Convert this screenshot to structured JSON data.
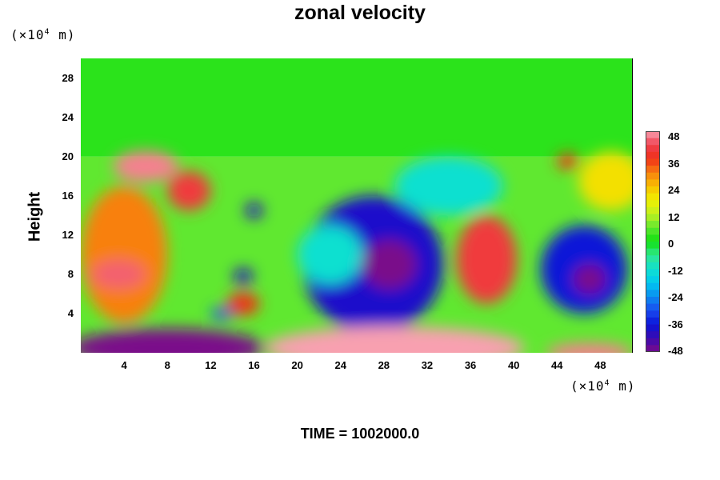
{
  "chart_data": {
    "type": "heatmap",
    "title": "zonal velocity",
    "ylabel": "Height",
    "xunit": {
      "prefix": "(×10",
      "exp": "4",
      "suffix": " m)"
    },
    "yunit": {
      "prefix": "(×10",
      "exp": "4",
      "suffix": " m)"
    },
    "footer": "TIME = 1002000.0",
    "xlim": [
      0,
      51
    ],
    "ylim": [
      0,
      30
    ],
    "xticks": [
      4,
      8,
      12,
      16,
      20,
      24,
      28,
      32,
      36,
      40,
      44,
      48
    ],
    "yticks": [
      4,
      8,
      12,
      16,
      20,
      24,
      28
    ],
    "colorbar": {
      "range": [
        -48,
        48
      ],
      "ticks": [
        48,
        36,
        24,
        12,
        0,
        -12,
        -24,
        -36,
        -48
      ]
    },
    "background_value": 0,
    "layers": [
      {
        "region": "below 20",
        "value": 6
      },
      {
        "region": "above 20",
        "value": 2
      }
    ],
    "features": [
      {
        "x": 4,
        "y": 10,
        "rx": 4,
        "ry": 7,
        "value": 30
      },
      {
        "x": 6,
        "y": 19,
        "rx": 3,
        "ry": 1.6,
        "value": 46
      },
      {
        "x": 10,
        "y": 16.5,
        "rx": 2,
        "ry": 2,
        "value": 40
      },
      {
        "x": 3.5,
        "y": 8,
        "rx": 2.5,
        "ry": 1.5,
        "value": 44
      },
      {
        "x": 27,
        "y": 9,
        "rx": 6.5,
        "ry": 7,
        "value": -38
      },
      {
        "x": 28.5,
        "y": 9,
        "rx": 2.5,
        "ry": 2.5,
        "value": -48
      },
      {
        "x": 37.5,
        "y": 9.5,
        "rx": 2.8,
        "ry": 4.5,
        "value": 40
      },
      {
        "x": 46.5,
        "y": 8.5,
        "rx": 4,
        "ry": 4.5,
        "value": -36
      },
      {
        "x": 47,
        "y": 7.5,
        "rx": 1.5,
        "ry": 1.5,
        "value": -48
      },
      {
        "x": 8,
        "y": 0.5,
        "rx": 9,
        "ry": 2,
        "value": -48
      },
      {
        "x": 29,
        "y": 0.5,
        "rx": 12,
        "ry": 2.2,
        "value": 48
      },
      {
        "x": 47,
        "y": 0,
        "rx": 4,
        "ry": 1,
        "value": 46
      },
      {
        "x": 23,
        "y": 10,
        "rx": 3,
        "ry": 3,
        "value": -12
      },
      {
        "x": 15,
        "y": 5,
        "rx": 1.5,
        "ry": 1.2,
        "value": 36
      },
      {
        "x": 15,
        "y": 7.8,
        "rx": 0.9,
        "ry": 0.8,
        "value": -40
      },
      {
        "x": 13,
        "y": 4,
        "rx": 1,
        "ry": 0.6,
        "value": -30
      },
      {
        "x": 16,
        "y": 14.5,
        "rx": 0.8,
        "ry": 0.8,
        "value": -40
      },
      {
        "x": 34,
        "y": 17,
        "rx": 5,
        "ry": 3,
        "value": -12
      },
      {
        "x": 49,
        "y": 17.5,
        "rx": 3,
        "ry": 3,
        "value": 20
      },
      {
        "x": 45,
        "y": 19.5,
        "rx": 1,
        "ry": 0.8,
        "value": 36
      }
    ]
  }
}
